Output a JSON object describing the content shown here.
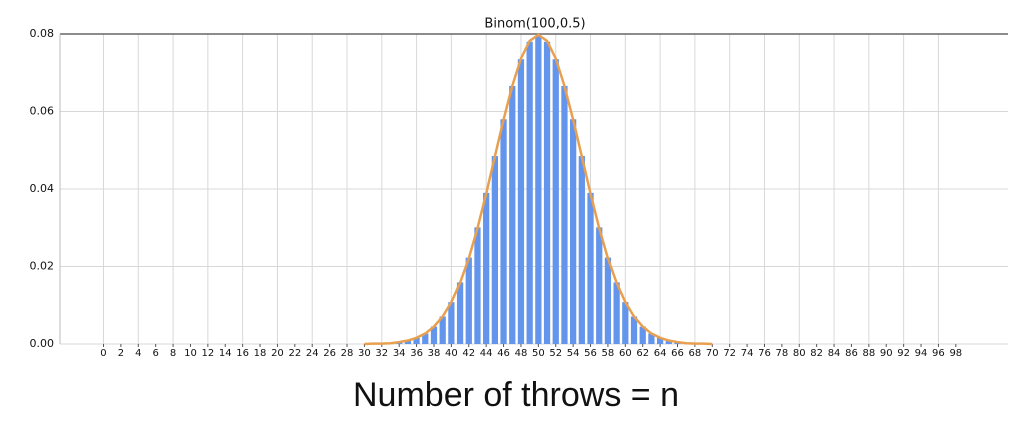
{
  "chart_data": {
    "type": "bar",
    "title": "Binom(100,0.5)",
    "x_label": "Number of throws = n",
    "x": [
      0,
      1,
      2,
      3,
      4,
      5,
      6,
      7,
      8,
      9,
      10,
      11,
      12,
      13,
      14,
      15,
      16,
      17,
      18,
      19,
      20,
      21,
      22,
      23,
      24,
      25,
      26,
      27,
      28,
      29,
      30,
      31,
      32,
      33,
      34,
      35,
      36,
      37,
      38,
      39,
      40,
      41,
      42,
      43,
      44,
      45,
      46,
      47,
      48,
      49,
      50,
      51,
      52,
      53,
      54,
      55,
      56,
      57,
      58,
      59,
      60,
      61,
      62,
      63,
      64,
      65,
      66,
      67,
      68,
      69,
      70,
      71,
      72,
      73,
      74,
      75,
      76,
      77,
      78,
      79,
      80,
      81,
      82,
      83,
      84,
      85,
      86,
      87,
      88,
      89,
      90,
      91,
      92,
      93,
      94,
      95,
      96,
      97,
      98,
      99,
      100
    ],
    "series": [
      {
        "type": "bar",
        "color": "#6495ed",
        "values": [
          0,
          0,
          0,
          0,
          0,
          0,
          0,
          0,
          0,
          0,
          0,
          0,
          0,
          0,
          0,
          0,
          0,
          0,
          0,
          0,
          0,
          0,
          0,
          0,
          0,
          0,
          0,
          0,
          0,
          0,
          0,
          0,
          0.0001,
          0.0002,
          0.0005,
          0.0009,
          0.0016,
          0.0027,
          0.0045,
          0.0071,
          0.0108,
          0.0159,
          0.0223,
          0.0301,
          0.039,
          0.0485,
          0.058,
          0.0666,
          0.0735,
          0.078,
          0.0796,
          0.078,
          0.0735,
          0.0666,
          0.058,
          0.0485,
          0.039,
          0.0301,
          0.0223,
          0.0159,
          0.0108,
          0.0071,
          0.0045,
          0.0027,
          0.0016,
          0.0009,
          0.0005,
          0.0002,
          0.0001,
          0,
          0,
          0,
          0,
          0,
          0,
          0,
          0,
          0,
          0,
          0,
          0,
          0,
          0,
          0,
          0,
          0,
          0,
          0,
          0,
          0,
          0,
          0,
          0,
          0,
          0,
          0,
          0,
          0,
          0,
          0,
          0
        ]
      },
      {
        "type": "line",
        "color": "#e8a050",
        "x": [
          30,
          31,
          32,
          33,
          34,
          35,
          36,
          37,
          38,
          39,
          40,
          41,
          42,
          43,
          44,
          45,
          46,
          47,
          48,
          49,
          50,
          51,
          52,
          53,
          54,
          55,
          56,
          57,
          58,
          59,
          60,
          61,
          62,
          63,
          64,
          65,
          66,
          67,
          68,
          69,
          70
        ],
        "values": [
          0,
          0.0001,
          0.0001,
          0.0002,
          0.0005,
          0.0009,
          0.0016,
          0.0027,
          0.0045,
          0.0071,
          0.0108,
          0.0158,
          0.0221,
          0.0299,
          0.0388,
          0.0484,
          0.0579,
          0.0666,
          0.0737,
          0.0782,
          0.0798,
          0.0782,
          0.0737,
          0.0666,
          0.0579,
          0.0484,
          0.0388,
          0.0299,
          0.0221,
          0.0158,
          0.0108,
          0.0071,
          0.0045,
          0.0027,
          0.0016,
          0.0009,
          0.0005,
          0.0002,
          0.0001,
          0.0001,
          0
        ]
      }
    ],
    "xlim": [
      -5,
      104
    ],
    "xticks": [
      0,
      2,
      4,
      6,
      8,
      10,
      12,
      14,
      16,
      18,
      20,
      22,
      24,
      26,
      28,
      30,
      32,
      34,
      36,
      38,
      40,
      42,
      44,
      46,
      48,
      50,
      52,
      54,
      56,
      58,
      60,
      62,
      64,
      66,
      68,
      70,
      72,
      74,
      76,
      78,
      80,
      82,
      84,
      86,
      88,
      90,
      92,
      94,
      96,
      98
    ],
    "ylim": [
      0,
      0.08
    ],
    "yticks": [
      {
        "value": 0,
        "label": "0.00"
      },
      {
        "value": 0.02,
        "label": "0.02"
      },
      {
        "value": 0.04,
        "label": "0.04"
      },
      {
        "value": 0.06,
        "label": "0.06"
      },
      {
        "value": 0.08,
        "label": "0.08"
      }
    ],
    "grid": true
  }
}
